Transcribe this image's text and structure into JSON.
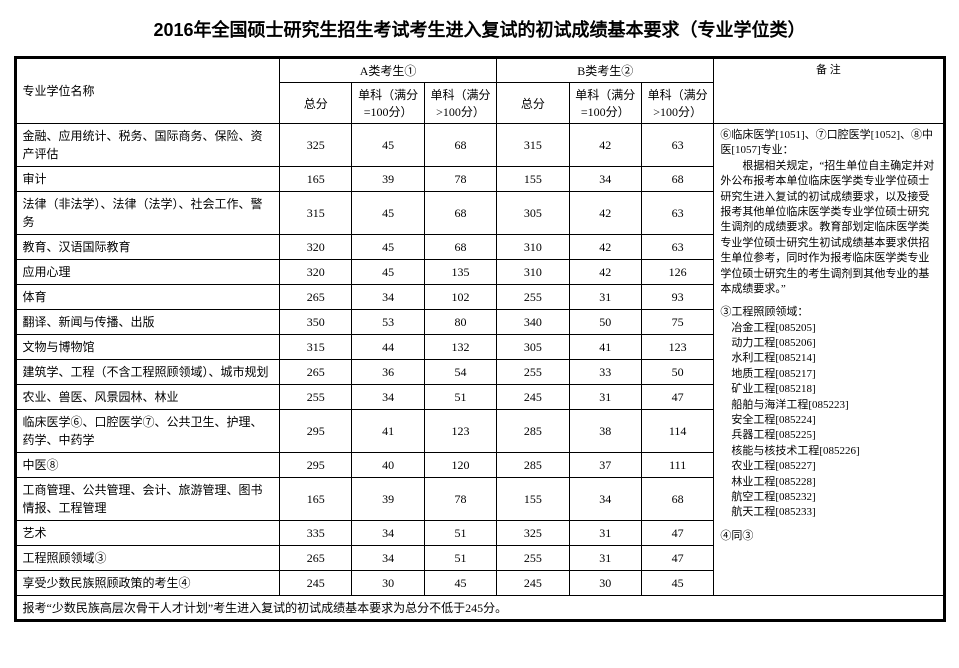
{
  "title": "2016年全国硕士研究生招生考试考生进入复试的初试成绩基本要求（专业学位类）",
  "header": {
    "name": "专业学位名称",
    "catA": "A类考生①",
    "catB": "B类考生②",
    "notes": "备  注",
    "total": "总分",
    "sub100": "单科（满分=100分）",
    "subOver": "单科（满分>100分）"
  },
  "rows": [
    {
      "name": "金融、应用统计、税务、国际商务、保险、资产评估",
      "a": [
        325,
        45,
        68
      ],
      "b": [
        315,
        42,
        63
      ]
    },
    {
      "name": "审计",
      "a": [
        165,
        39,
        78
      ],
      "b": [
        155,
        34,
        68
      ]
    },
    {
      "name": "法律（非法学）、法律（法学）、社会工作、警务",
      "a": [
        315,
        45,
        68
      ],
      "b": [
        305,
        42,
        63
      ]
    },
    {
      "name": "教育、汉语国际教育",
      "a": [
        320,
        45,
        68
      ],
      "b": [
        310,
        42,
        63
      ]
    },
    {
      "name": "应用心理",
      "a": [
        320,
        45,
        135
      ],
      "b": [
        310,
        42,
        126
      ]
    },
    {
      "name": "体育",
      "a": [
        265,
        34,
        102
      ],
      "b": [
        255,
        31,
        93
      ]
    },
    {
      "name": "翻译、新闻与传播、出版",
      "a": [
        350,
        53,
        80
      ],
      "b": [
        340,
        50,
        75
      ]
    },
    {
      "name": "文物与博物馆",
      "a": [
        315,
        44,
        132
      ],
      "b": [
        305,
        41,
        123
      ]
    },
    {
      "name": "建筑学、工程（不含工程照顾领域）、城市规划",
      "a": [
        265,
        36,
        54
      ],
      "b": [
        255,
        33,
        50
      ]
    },
    {
      "name": "农业、兽医、风景园林、林业",
      "a": [
        255,
        34,
        51
      ],
      "b": [
        245,
        31,
        47
      ]
    },
    {
      "name": "临床医学⑥、口腔医学⑦、公共卫生、护理、药学、中药学",
      "a": [
        295,
        41,
        123
      ],
      "b": [
        285,
        38,
        114
      ]
    },
    {
      "name": "中医⑧",
      "a": [
        295,
        40,
        120
      ],
      "b": [
        285,
        37,
        111
      ]
    },
    {
      "name": "工商管理、公共管理、会计、旅游管理、图书情报、工程管理",
      "a": [
        165,
        39,
        78
      ],
      "b": [
        155,
        34,
        68
      ]
    },
    {
      "name": "艺术",
      "a": [
        335,
        34,
        51
      ],
      "b": [
        325,
        31,
        47
      ]
    },
    {
      "name": "工程照顾领域③",
      "a": [
        265,
        34,
        51
      ],
      "b": [
        255,
        31,
        47
      ]
    },
    {
      "name": "享受少数民族照顾政策的考生④",
      "a": [
        245,
        30,
        45
      ],
      "b": [
        245,
        30,
        45
      ]
    }
  ],
  "footnote": "报考“少数民族高层次骨干人才计划”考生进入复试的初试成绩基本要求为总分不低于245分。",
  "notes": {
    "p1_head": "⑥临床医学[1051]、⑦口腔医学[1052]、⑧中医[1057]专业：",
    "p1_body": "　　根据相关规定，“招生单位自主确定并对外公布报考本单位临床医学类专业学位硕士研究生进入复试的初试成绩要求，以及接受报考其他单位临床医学类专业学位硕士研究生调剂的成绩要求。教育部划定临床医学类专业学位硕士研究生初试成绩基本要求供招生单位参考，同时作为报考临床医学类专业学位硕士研究生的考生调剂到其他专业的基本成绩要求。”",
    "p2_head": "③工程照顾领域：",
    "p2_list": [
      "冶金工程[085205]",
      "动力工程[085206]",
      "水利工程[085214]",
      "地质工程[085217]",
      "矿业工程[085218]",
      "船舶与海洋工程[085223]",
      "安全工程[085224]",
      "兵器工程[085225]",
      "核能与核技术工程[085226]",
      "农业工程[085227]",
      "林业工程[085228]",
      "航空工程[085232]",
      "航天工程[085233]"
    ],
    "p3": "④同③"
  }
}
